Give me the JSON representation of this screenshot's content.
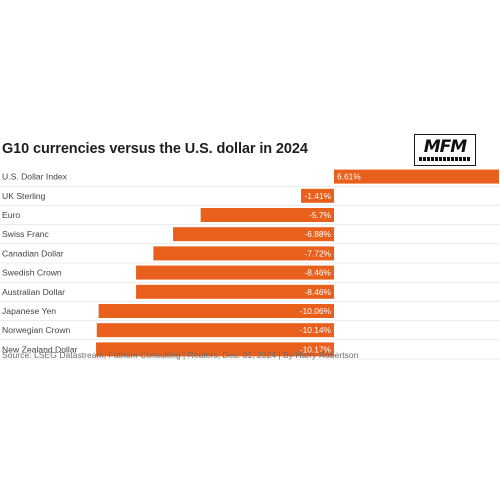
{
  "title": "G10 currencies versus the U.S. dollar in 2024",
  "logo": {
    "text": "MFM",
    "icon": "mfm-logo"
  },
  "source": "Source: LSEG Datastream, Fathom Consulting | Reuters, Dec. 31, 2024 | By Harry Robertson",
  "colors": {
    "bar": "#e8601c",
    "label_text": "#444444",
    "value_text": "#ffffff",
    "divider": "#d9d9d9"
  },
  "chart_data": {
    "type": "bar",
    "orientation": "horizontal",
    "title": "G10 currencies versus the U.S. dollar in 2024",
    "categories": [
      "U.S. Dollar Index",
      "UK Sterling",
      "Euro",
      "Swiss Franc",
      "Canadian Dollar",
      "Swedish Crown",
      "Australian Dollar",
      "Japanese Yen",
      "Norwegian Crown",
      "New Zealand Dollar"
    ],
    "values": [
      6.61,
      -1.41,
      -5.7,
      -6.88,
      -7.72,
      -8.46,
      -8.46,
      -10.06,
      -10.14,
      -10.17
    ],
    "value_labels": [
      "6.61%",
      "-1.41%",
      "-5.7%",
      "-6.88%",
      "-7.72%",
      "-8.46%",
      "-8.46%",
      "-10.06%",
      "-10.14%",
      "-10.17%"
    ],
    "unit": "%",
    "xlim": [
      -10.6,
      6.61
    ],
    "grid": false,
    "legend": "none"
  }
}
